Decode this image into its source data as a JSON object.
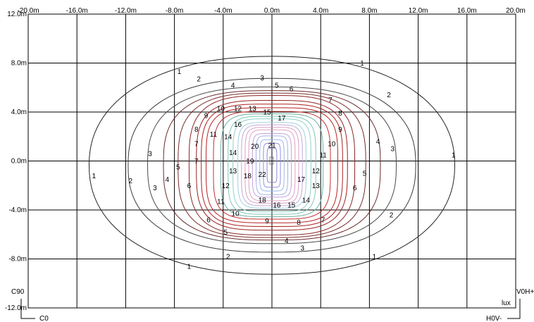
{
  "chart_data": {
    "type": "contour",
    "unit": "lux",
    "x_ticks": [
      "-20.0m",
      "-16.0m",
      "-12.0m",
      "-8.0m",
      "-4.0m",
      "0.0m",
      "4.0m",
      "8.0m",
      "12.0m",
      "16.0m",
      "20.0m"
    ],
    "y_ticks": [
      "12.0m",
      "8.0m",
      "4.0m",
      "0.0m",
      "-4.0m",
      "-8.0m",
      "-12.0m"
    ],
    "xlim": [
      -20,
      20
    ],
    "ylim": [
      -12,
      12
    ],
    "grid": true,
    "isolines": [
      {
        "level": 1,
        "rx": 15.0,
        "ry": 8.9,
        "color": "#222222"
      },
      {
        "level": 2,
        "rx": 11.8,
        "ry": 7.1,
        "color": "#3a3a3a"
      },
      {
        "level": 3,
        "rx": 10.2,
        "ry": 6.4,
        "color": "#4a4a4a"
      },
      {
        "level": 4,
        "rx": 8.9,
        "ry": 6.1,
        "color": "#6a2a2a"
      },
      {
        "level": 5,
        "rx": 7.7,
        "ry": 5.9,
        "color": "#7a2a2a"
      },
      {
        "level": 6,
        "rx": 6.8,
        "ry": 5.7,
        "color": "#8a2626"
      },
      {
        "level": 7,
        "rx": 6.2,
        "ry": 5.3,
        "color": "#9a2222"
      },
      {
        "level": 8,
        "rx": 5.8,
        "ry": 5.0,
        "color": "#aa2020"
      },
      {
        "level": 9,
        "rx": 5.4,
        "ry": 4.7,
        "color": "#b82222"
      },
      {
        "level": 10,
        "rx": 4.8,
        "ry": 4.4,
        "color": "#c43030"
      },
      {
        "level": 11,
        "rx": 4.2,
        "ry": 4.2,
        "color": "#6fb0a0"
      },
      {
        "level": 12,
        "rx": 3.6,
        "ry": 4.0,
        "color": "#7fc8b8"
      },
      {
        "level": 13,
        "rx": 3.2,
        "ry": 3.8,
        "color": "#8ed0c8"
      },
      {
        "level": 14,
        "rx": 2.8,
        "ry": 3.5,
        "color": "#a0d0e0"
      },
      {
        "level": 15,
        "rx": 2.5,
        "ry": 3.3,
        "color": "#c0a8d8"
      },
      {
        "level": 16,
        "rx": 2.2,
        "ry": 3.1,
        "color": "#d8a0c8"
      },
      {
        "level": 17,
        "rx": 1.9,
        "ry": 2.9,
        "color": "#e0a0c0"
      },
      {
        "level": 18,
        "rx": 1.6,
        "ry": 2.6,
        "color": "#c0a0e0"
      },
      {
        "level": 19,
        "rx": 1.3,
        "ry": 2.4,
        "color": "#a8b0e8"
      },
      {
        "level": 20,
        "rx": 1.0,
        "ry": 2.1,
        "color": "#98b8f0"
      },
      {
        "level": 21,
        "rx": 0.7,
        "ry": 1.8,
        "color": "#9090e0"
      },
      {
        "level": 22,
        "rx": 0.4,
        "ry": 1.4,
        "color": "#8888d8"
      }
    ],
    "contour_labels": [
      {
        "text": "1",
        "x": -7.6,
        "y": 7.3
      },
      {
        "text": "1",
        "x": 7.4,
        "y": 8.0
      },
      {
        "text": "1",
        "x": -14.6,
        "y": -1.2
      },
      {
        "text": "1",
        "x": 14.9,
        "y": 0.5
      },
      {
        "text": "1",
        "x": -6.8,
        "y": -8.6
      },
      {
        "text": "1",
        "x": 8.4,
        "y": -7.8
      },
      {
        "text": "2",
        "x": -6.0,
        "y": 6.7
      },
      {
        "text": "2",
        "x": 9.6,
        "y": 5.4
      },
      {
        "text": "2",
        "x": -11.6,
        "y": -1.6
      },
      {
        "text": "2",
        "x": 9.8,
        "y": -4.4
      },
      {
        "text": "2",
        "x": -3.6,
        "y": -7.8
      },
      {
        "text": "3",
        "x": -0.8,
        "y": 6.8
      },
      {
        "text": "3",
        "x": -10.0,
        "y": 0.6
      },
      {
        "text": "3",
        "x": 9.9,
        "y": 1.0
      },
      {
        "text": "3",
        "x": -9.6,
        "y": -2.2
      },
      {
        "text": "3",
        "x": 2.5,
        "y": -7.1
      },
      {
        "text": "4",
        "x": -3.2,
        "y": 6.2
      },
      {
        "text": "4",
        "x": 8.7,
        "y": 1.6
      },
      {
        "text": "4",
        "x": -8.6,
        "y": -1.5
      },
      {
        "text": "4",
        "x": 1.2,
        "y": -6.5
      },
      {
        "text": "5",
        "x": 0.4,
        "y": 6.2
      },
      {
        "text": "5",
        "x": -7.7,
        "y": -0.5
      },
      {
        "text": "5",
        "x": 7.6,
        "y": -1.0
      },
      {
        "text": "5",
        "x": -3.8,
        "y": -5.8
      },
      {
        "text": "6",
        "x": 1.6,
        "y": 5.9
      },
      {
        "text": "6",
        "x": -6.8,
        "y": -2.0
      },
      {
        "text": "6",
        "x": 6.8,
        "y": -2.2
      },
      {
        "text": "6",
        "x": -5.2,
        "y": -4.8
      },
      {
        "text": "7",
        "x": 4.8,
        "y": 5.0
      },
      {
        "text": "7",
        "x": -6.2,
        "y": 1.4
      },
      {
        "text": "7",
        "x": -6.2,
        "y": 0.0
      },
      {
        "text": "7",
        "x": 4.2,
        "y": -4.8
      },
      {
        "text": "8",
        "x": 5.6,
        "y": 3.9
      },
      {
        "text": "8",
        "x": -6.2,
        "y": 2.6
      },
      {
        "text": "8",
        "x": 2.2,
        "y": -5.0
      },
      {
        "text": "9",
        "x": -5.4,
        "y": 3.7
      },
      {
        "text": "9",
        "x": 5.6,
        "y": 2.6
      },
      {
        "text": "9",
        "x": -0.4,
        "y": -4.9
      },
      {
        "text": "10",
        "x": -4.2,
        "y": 4.3
      },
      {
        "text": "10",
        "x": 4.9,
        "y": 1.4
      },
      {
        "text": "10",
        "x": -3.0,
        "y": -4.3
      },
      {
        "text": "11",
        "x": -4.8,
        "y": 2.2
      },
      {
        "text": "11",
        "x": 4.2,
        "y": 0.5
      },
      {
        "text": "11",
        "x": -4.2,
        "y": -3.3
      },
      {
        "text": "12",
        "x": -2.8,
        "y": 4.3
      },
      {
        "text": "12",
        "x": 3.6,
        "y": -0.8
      },
      {
        "text": "12",
        "x": -3.8,
        "y": -2.0
      },
      {
        "text": "13",
        "x": -1.6,
        "y": 4.3
      },
      {
        "text": "13",
        "x": -3.2,
        "y": -0.8
      },
      {
        "text": "13",
        "x": 3.6,
        "y": -2.0
      },
      {
        "text": "14",
        "x": -3.6,
        "y": 2.0
      },
      {
        "text": "14",
        "x": -3.2,
        "y": 0.7
      },
      {
        "text": "14",
        "x": 2.8,
        "y": -3.2
      },
      {
        "text": "15",
        "x": -0.4,
        "y": 4.0
      },
      {
        "text": "15",
        "x": 1.6,
        "y": -3.6
      },
      {
        "text": "16",
        "x": -2.8,
        "y": 3.0
      },
      {
        "text": "16",
        "x": 0.4,
        "y": -3.6
      },
      {
        "text": "17",
        "x": 0.8,
        "y": 3.5
      },
      {
        "text": "17",
        "x": 2.4,
        "y": -1.5
      },
      {
        "text": "18",
        "x": -2.0,
        "y": -1.2
      },
      {
        "text": "18",
        "x": -0.8,
        "y": -3.2
      },
      {
        "text": "19",
        "x": -1.8,
        "y": 0.0
      },
      {
        "text": "20",
        "x": -1.4,
        "y": 1.2
      },
      {
        "text": "21",
        "x": 0.0,
        "y": 1.3
      },
      {
        "text": "22",
        "x": -0.8,
        "y": -1.1
      }
    ],
    "corner_labels": {
      "c90": "C90",
      "c0": "C0",
      "v0h_plus": "V0H+",
      "h0v_minus": "H0V-",
      "unit": "lux"
    }
  }
}
